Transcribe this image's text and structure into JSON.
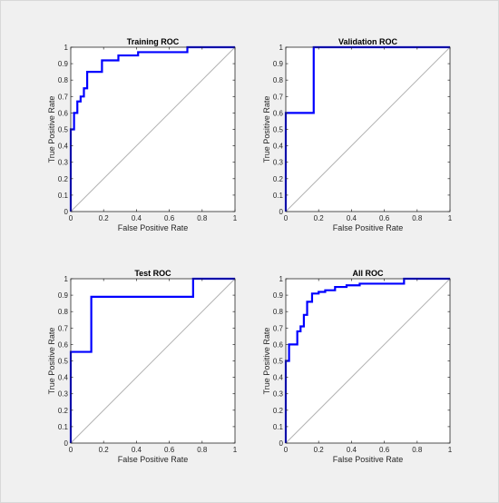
{
  "colors": {
    "roc_line": "#0000ff",
    "diagonal": "#b3b3b3",
    "axis": "#262626",
    "figure_bg": "#f0f0f0",
    "axes_bg": "#ffffff"
  },
  "chart_data": [
    {
      "type": "line",
      "title": "Training ROC",
      "xlabel": "False Positive Rate",
      "ylabel": "True Positive Rate",
      "xlim": [
        0,
        1
      ],
      "ylim": [
        0,
        1
      ],
      "xticks": [
        "0",
        "0.2",
        "0.4",
        "0.6",
        "0.8",
        "1"
      ],
      "yticks": [
        "0",
        "0.1",
        "0.2",
        "0.3",
        "0.4",
        "0.5",
        "0.6",
        "0.7",
        "0.8",
        "0.9",
        "1"
      ],
      "grid": false,
      "series": [
        {
          "x": [
            0,
            0,
            0.02,
            0.02,
            0.04,
            0.04,
            0.06,
            0.06,
            0.08,
            0.08,
            0.1,
            0.1,
            0.13,
            0.13,
            0.19,
            0.19,
            0.29,
            0.29,
            0.41,
            0.41,
            0.71,
            0.71,
            1
          ],
          "y": [
            0,
            0.5,
            0.5,
            0.6,
            0.6,
            0.67,
            0.67,
            0.7,
            0.7,
            0.75,
            0.75,
            0.85,
            0.85,
            0.85,
            0.85,
            0.92,
            0.92,
            0.95,
            0.95,
            0.97,
            0.97,
            1.0,
            1.0
          ]
        },
        {
          "x": [
            0,
            1
          ],
          "y": [
            0,
            1
          ]
        }
      ]
    },
    {
      "type": "line",
      "title": "Validation ROC",
      "xlabel": "False Positive Rate",
      "ylabel": "True Positive Rate",
      "xlim": [
        0,
        1
      ],
      "ylim": [
        0,
        1
      ],
      "xticks": [
        "0",
        "0.2",
        "0.4",
        "0.6",
        "0.8",
        "1"
      ],
      "yticks": [
        "0",
        "0.1",
        "0.2",
        "0.3",
        "0.4",
        "0.5",
        "0.6",
        "0.7",
        "0.8",
        "0.9",
        "1"
      ],
      "grid": false,
      "series": [
        {
          "x": [
            0,
            0,
            0.17,
            0.17,
            1
          ],
          "y": [
            0,
            0.6,
            0.6,
            1.0,
            1.0
          ]
        },
        {
          "x": [
            0,
            1
          ],
          "y": [
            0,
            1
          ]
        }
      ]
    },
    {
      "type": "line",
      "title": "Test ROC",
      "xlabel": "False Positive Rate",
      "ylabel": "True Positive Rate",
      "xlim": [
        0,
        1
      ],
      "ylim": [
        0,
        1
      ],
      "xticks": [
        "0",
        "0.2",
        "0.4",
        "0.6",
        "0.8",
        "1"
      ],
      "yticks": [
        "0",
        "0.1",
        "0.2",
        "0.3",
        "0.4",
        "0.5",
        "0.6",
        "0.7",
        "0.8",
        "0.9",
        "1"
      ],
      "grid": false,
      "series": [
        {
          "x": [
            0,
            0,
            0.125,
            0.125,
            0.745,
            0.745,
            1
          ],
          "y": [
            0,
            0.555,
            0.555,
            0.89,
            0.89,
            1.0,
            1.0
          ]
        },
        {
          "x": [
            0,
            1
          ],
          "y": [
            0,
            1
          ]
        }
      ]
    },
    {
      "type": "line",
      "title": "All ROC",
      "xlabel": "False Positive Rate",
      "ylabel": "True Positive Rate",
      "xlim": [
        0,
        1
      ],
      "ylim": [
        0,
        1
      ],
      "xticks": [
        "0",
        "0.2",
        "0.4",
        "0.6",
        "0.8",
        "1"
      ],
      "yticks": [
        "0",
        "0.1",
        "0.2",
        "0.3",
        "0.4",
        "0.5",
        "0.6",
        "0.7",
        "0.8",
        "0.9",
        "1"
      ],
      "grid": false,
      "series": [
        {
          "x": [
            0,
            0,
            0.02,
            0.02,
            0.07,
            0.07,
            0.09,
            0.09,
            0.11,
            0.11,
            0.13,
            0.13,
            0.16,
            0.16,
            0.2,
            0.2,
            0.24,
            0.24,
            0.3,
            0.3,
            0.37,
            0.37,
            0.45,
            0.45,
            0.72,
            0.72,
            1
          ],
          "y": [
            0,
            0.5,
            0.5,
            0.6,
            0.6,
            0.68,
            0.68,
            0.71,
            0.71,
            0.78,
            0.78,
            0.86,
            0.86,
            0.91,
            0.91,
            0.92,
            0.92,
            0.93,
            0.93,
            0.95,
            0.95,
            0.96,
            0.96,
            0.97,
            0.97,
            1.0,
            1.0
          ]
        },
        {
          "x": [
            0,
            1
          ],
          "y": [
            0,
            1
          ]
        }
      ]
    }
  ]
}
